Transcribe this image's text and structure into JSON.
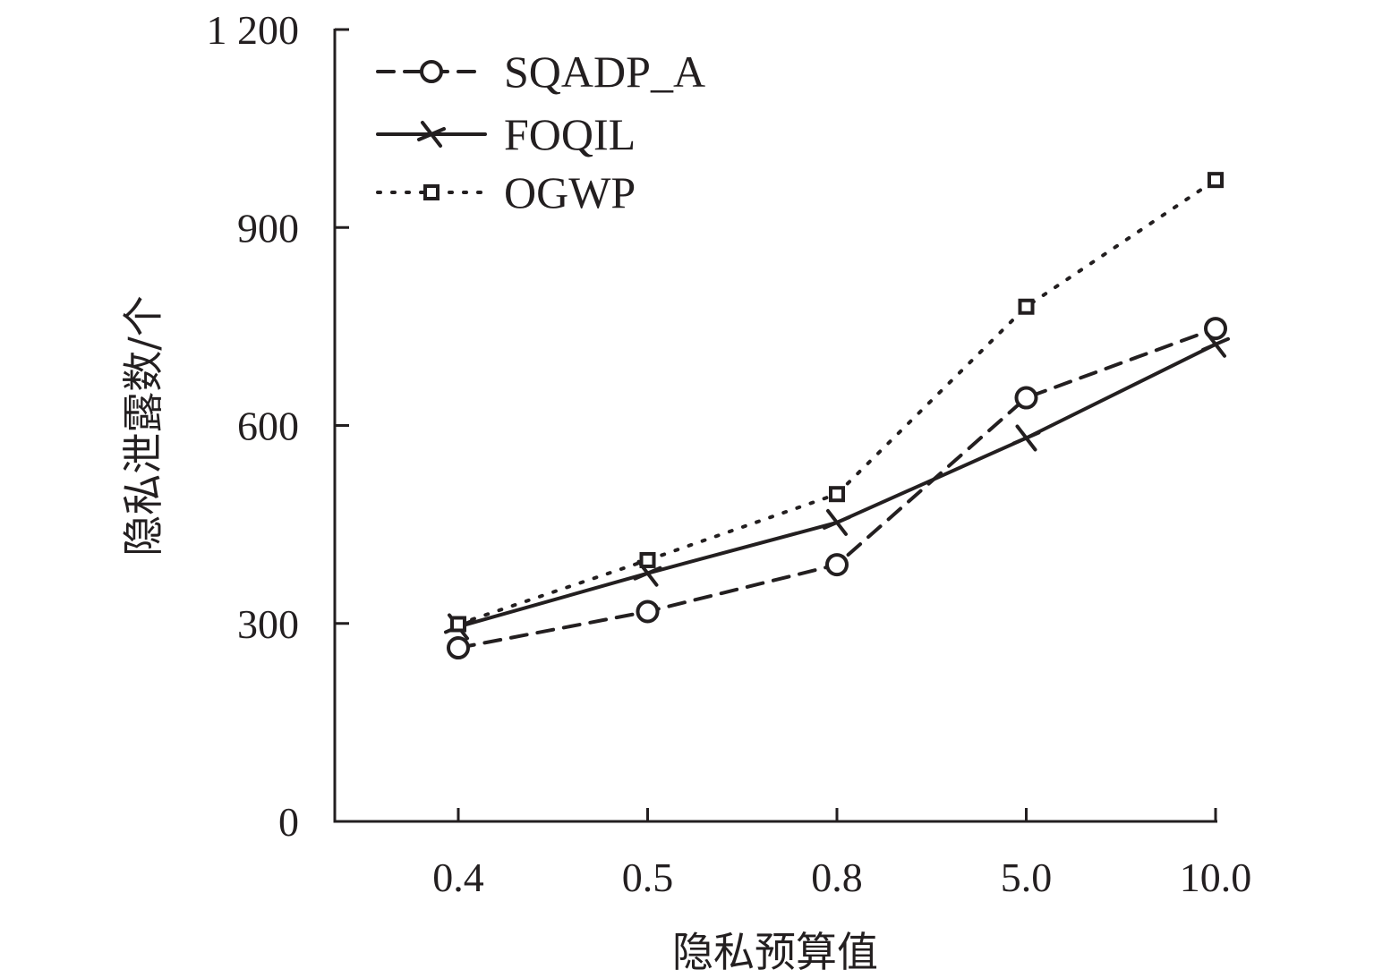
{
  "chart_data": {
    "type": "line",
    "title": "",
    "xlabel": "隐私预算值",
    "ylabel": "隐私泄露数/个",
    "categories": [
      "0.4",
      "0.5",
      "0.8",
      "5.0",
      "10.0"
    ],
    "ylim": [
      0,
      1200
    ],
    "yticks": [
      0,
      300,
      600,
      900,
      1200
    ],
    "ytick_labels": [
      "0",
      "300",
      "600",
      "900",
      "1 200"
    ],
    "grid": false,
    "legend_position": "top-left",
    "series": [
      {
        "name": "SQADP_A",
        "style": "dashed",
        "marker": "circle",
        "values": [
          263,
          318,
          389,
          642,
          747
        ]
      },
      {
        "name": "FOQIL",
        "style": "solid",
        "marker": "x",
        "values": [
          295,
          376,
          453,
          581,
          723
        ]
      },
      {
        "name": "OGWP",
        "style": "dotted",
        "marker": "square",
        "values": [
          299,
          396,
          496,
          780,
          972
        ]
      }
    ],
    "colors": {
      "line": "#231f20",
      "background": "#ffffff"
    }
  }
}
